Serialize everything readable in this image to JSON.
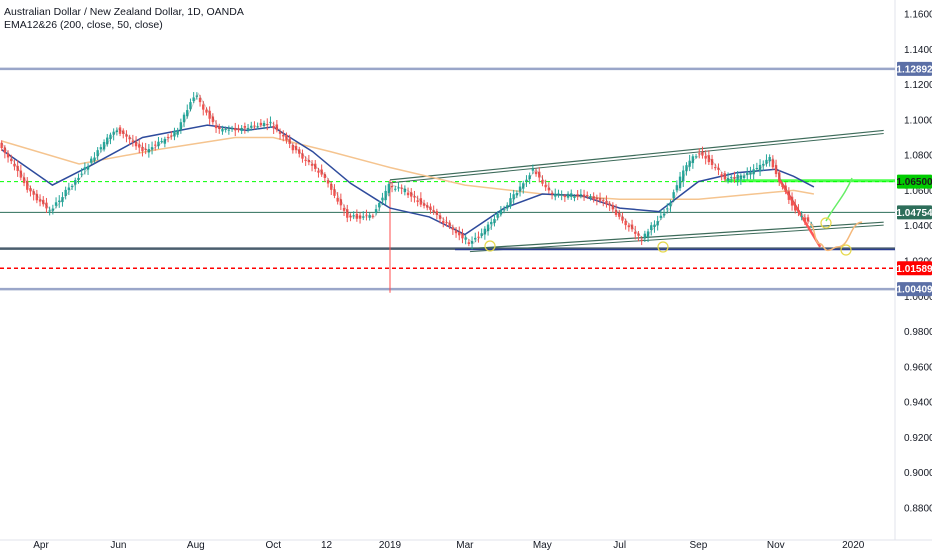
{
  "legend": {
    "line1": "Australian Dollar / New Zealand Dollar, 1D, OANDA",
    "line2": "EMA12&26 (200, close, 50, close)"
  },
  "chart_data": {
    "type": "line",
    "title": "Australian Dollar / New Zealand Dollar, 1D, OANDA",
    "indicator": "EMA12&26 (200, close, 50, close)",
    "ylim": [
      0.866,
      1.17
    ],
    "y_ticks": [
      "1.16000",
      "1.14000",
      "1.12000",
      "1.10000",
      "1.08000",
      "1.06000",
      "1.04000",
      "1.02000",
      "1.00000",
      "0.98000",
      "0.96000",
      "0.94000",
      "0.92000",
      "0.90000",
      "0.88000"
    ],
    "y_tick_values": [
      1.16,
      1.14,
      1.12,
      1.1,
      1.08,
      1.06,
      1.04,
      1.02,
      1.0,
      0.98,
      0.96,
      0.94,
      0.92,
      0.9,
      0.88
    ],
    "x_ticks": [
      "Apr",
      "Jun",
      "Aug",
      "Oct",
      "12",
      "2019",
      "Mar",
      "May",
      "Jul",
      "Sep",
      "Nov",
      "2020"
    ],
    "x_tick_dates": [
      "2018-04-01",
      "2018-06-01",
      "2018-08-01",
      "2018-10-01",
      "2018-11-12",
      "2019-01-01",
      "2019-03-01",
      "2019-05-01",
      "2019-07-01",
      "2019-09-01",
      "2019-11-01",
      "2020-01-01"
    ],
    "price_labels": [
      {
        "value": 1.12892,
        "text": "1.12892",
        "color": "#5b6fa6"
      },
      {
        "value": 1.065,
        "text": "1.06500",
        "color": "#00cc00"
      },
      {
        "value": 1.04754,
        "text": "1.04754",
        "color": "#2d6e5a"
      },
      {
        "value": 1.01589,
        "text": "1.01589",
        "color": "#ff0000"
      },
      {
        "value": 1.00409,
        "text": "1.00409",
        "color": "#5b6fa6"
      }
    ],
    "series": [
      {
        "name": "Price",
        "x": [
          "2018-03-01",
          "2018-03-25",
          "2018-04-10",
          "2018-05-10",
          "2018-06-01",
          "2018-06-25",
          "2018-07-20",
          "2018-08-03",
          "2018-08-10",
          "2018-08-20",
          "2018-09-10",
          "2018-10-01",
          "2018-10-20",
          "2018-11-12",
          "2018-12-01",
          "2018-12-20",
          "2019-01-03",
          "2019-01-15",
          "2019-02-10",
          "2019-03-08",
          "2019-03-20",
          "2019-04-10",
          "2019-04-26",
          "2019-05-10",
          "2019-06-01",
          "2019-06-20",
          "2019-07-10",
          "2019-07-20",
          "2019-08-10",
          "2019-08-25",
          "2019-09-05",
          "2019-09-25",
          "2019-10-15",
          "2019-10-30",
          "2019-11-05",
          "2019-11-20",
          "2019-12-01"
        ],
        "values": [
          1.087,
          1.06,
          1.048,
          1.074,
          1.095,
          1.082,
          1.094,
          1.115,
          1.106,
          1.095,
          1.095,
          1.098,
          1.083,
          1.068,
          1.045,
          1.045,
          1.063,
          1.06,
          1.045,
          1.03,
          1.038,
          1.056,
          1.072,
          1.058,
          1.057,
          1.055,
          1.04,
          1.032,
          1.05,
          1.075,
          1.082,
          1.066,
          1.07,
          1.078,
          1.066,
          1.048,
          1.04
        ]
      },
      {
        "name": "EMA 50",
        "x": [
          "2018-03-01",
          "2018-04-10",
          "2018-05-10",
          "2018-06-20",
          "2018-08-10",
          "2018-09-10",
          "2018-10-01",
          "2018-11-01",
          "2018-12-01",
          "2019-01-01",
          "2019-02-01",
          "2019-03-01",
          "2019-04-01",
          "2019-05-01",
          "2019-06-01",
          "2019-07-01",
          "2019-08-01",
          "2019-09-01",
          "2019-10-01",
          "2019-11-01",
          "2019-11-15",
          "2019-12-01"
        ],
        "values": [
          1.083,
          1.063,
          1.074,
          1.09,
          1.097,
          1.094,
          1.096,
          1.082,
          1.064,
          1.05,
          1.045,
          1.035,
          1.05,
          1.058,
          1.057,
          1.05,
          1.048,
          1.065,
          1.07,
          1.072,
          1.068,
          1.062
        ]
      },
      {
        "name": "EMA 200",
        "x": [
          "2018-03-01",
          "2018-05-01",
          "2018-07-01",
          "2018-09-01",
          "2018-10-01",
          "2018-11-15",
          "2019-01-01",
          "2019-03-01",
          "2019-05-01",
          "2019-07-01",
          "2019-09-01",
          "2019-10-15",
          "2019-11-15",
          "2019-12-01"
        ],
        "values": [
          1.088,
          1.075,
          1.083,
          1.09,
          1.09,
          1.082,
          1.073,
          1.063,
          1.058,
          1.055,
          1.055,
          1.058,
          1.06,
          1.058
        ]
      },
      {
        "name": "Projection",
        "x": [
          "2019-11-28",
          "2019-12-05",
          "2019-12-12",
          "2019-12-20",
          "2020-01-08"
        ],
        "values": [
          1.041,
          1.03,
          1.026,
          1.028,
          1.042
        ]
      }
    ],
    "horizontal_levels": [
      {
        "value": 1.12892,
        "color": "#9aa6c9"
      },
      {
        "value": 1.065,
        "color": "#00ff00",
        "style": "dashed"
      },
      {
        "value": 1.04754,
        "color": "#2d6e5a"
      },
      {
        "value": 1.027,
        "color": "#4a5e6e"
      },
      {
        "value": 1.01589,
        "color": "#ff0000",
        "style": "dashed"
      },
      {
        "value": 1.00409,
        "color": "#9aa6c9"
      }
    ],
    "trend_lines": [
      {
        "x": [
          "2019-01-01",
          "2020-01-25"
        ],
        "values": [
          1.066,
          1.094
        ],
        "color": "#3d6b5a"
      },
      {
        "x": [
          "2019-03-05",
          "2020-01-25"
        ],
        "values": [
          1.027,
          1.042
        ],
        "color": "#3d6b5a"
      },
      {
        "x": [
          "2019-11-04",
          "2019-12-06"
        ],
        "values": [
          1.066,
          1.028
        ],
        "color": "#ff5555"
      }
    ],
    "grid": false,
    "legend_position": "top-left"
  }
}
